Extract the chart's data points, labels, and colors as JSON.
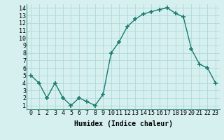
{
  "x": [
    0,
    1,
    2,
    3,
    4,
    5,
    6,
    7,
    8,
    9,
    10,
    11,
    12,
    13,
    14,
    15,
    16,
    17,
    18,
    19,
    20,
    21,
    22,
    23
  ],
  "y": [
    5,
    4,
    2,
    4,
    2,
    1,
    2,
    1.5,
    1,
    2.5,
    8,
    9.5,
    11.5,
    12.5,
    13.2,
    13.5,
    13.8,
    14,
    13.3,
    12.8,
    8.5,
    6.5,
    6,
    4
  ],
  "line_color": "#1a7a6e",
  "marker": "+",
  "marker_size": 4,
  "bg_color": "#d6f0f0",
  "grid_color": "#b0d8d8",
  "xlabel": "Humidex (Indice chaleur)",
  "xlim": [
    -0.5,
    23.5
  ],
  "ylim": [
    0.5,
    14.5
  ],
  "xticks": [
    0,
    1,
    2,
    3,
    4,
    5,
    6,
    7,
    8,
    9,
    10,
    11,
    12,
    13,
    14,
    15,
    16,
    17,
    18,
    19,
    20,
    21,
    22,
    23
  ],
  "yticks": [
    1,
    2,
    3,
    4,
    5,
    6,
    7,
    8,
    9,
    10,
    11,
    12,
    13,
    14
  ],
  "xlabel_fontsize": 7,
  "tick_fontsize": 6
}
